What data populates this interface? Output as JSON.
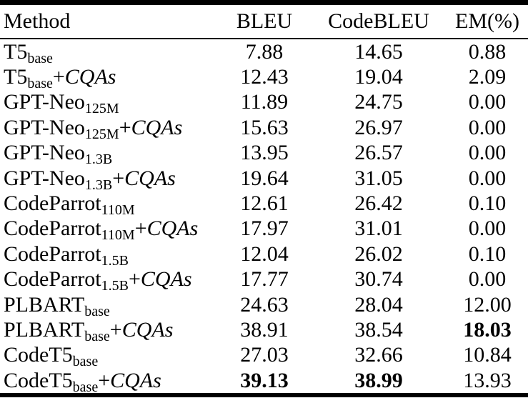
{
  "table": {
    "columns": [
      "Method",
      "BLEU",
      "CodeBLEU",
      "EM(%)"
    ],
    "cqas_plus": "+",
    "cqas_label": "CQAs",
    "text_color": "#000000",
    "background_color": "#ffffff",
    "rows": [
      {
        "name": "T5",
        "sub": "base",
        "cqas": false,
        "bleu": "7.88",
        "codebleu": "14.65",
        "em": "0.88",
        "bold": []
      },
      {
        "name": "T5",
        "sub": "base",
        "cqas": true,
        "bleu": "12.43",
        "codebleu": "19.04",
        "em": "2.09",
        "bold": []
      },
      {
        "name": "GPT-Neo",
        "sub": "125M",
        "cqas": false,
        "bleu": "11.89",
        "codebleu": "24.75",
        "em": "0.00",
        "bold": []
      },
      {
        "name": "GPT-Neo",
        "sub": "125M",
        "cqas": true,
        "bleu": "15.63",
        "codebleu": "26.97",
        "em": "0.00",
        "bold": []
      },
      {
        "name": "GPT-Neo",
        "sub": "1.3B",
        "cqas": false,
        "bleu": "13.95",
        "codebleu": "26.57",
        "em": "0.00",
        "bold": []
      },
      {
        "name": "GPT-Neo",
        "sub": "1.3B",
        "cqas": true,
        "bleu": "19.64",
        "codebleu": "31.05",
        "em": "0.00",
        "bold": []
      },
      {
        "name": "CodeParrot",
        "sub": "110M",
        "cqas": false,
        "bleu": "12.61",
        "codebleu": "26.42",
        "em": "0.10",
        "bold": []
      },
      {
        "name": "CodeParrot",
        "sub": "110M",
        "cqas": true,
        "bleu": "17.97",
        "codebleu": "31.01",
        "em": "0.00",
        "bold": []
      },
      {
        "name": "CodeParrot",
        "sub": "1.5B",
        "cqas": false,
        "bleu": "12.04",
        "codebleu": "26.02",
        "em": "0.10",
        "bold": []
      },
      {
        "name": "CodeParrot",
        "sub": "1.5B",
        "cqas": true,
        "bleu": "17.77",
        "codebleu": "30.74",
        "em": "0.00",
        "bold": []
      },
      {
        "name": "PLBART",
        "sub": "base",
        "cqas": false,
        "bleu": "24.63",
        "codebleu": "28.04",
        "em": "12.00",
        "bold": []
      },
      {
        "name": "PLBART",
        "sub": "base",
        "cqas": true,
        "bleu": "38.91",
        "codebleu": "38.54",
        "em": "18.03",
        "bold": [
          "em"
        ]
      },
      {
        "name": "CodeT5",
        "sub": "base",
        "cqas": false,
        "bleu": "27.03",
        "codebleu": "32.66",
        "em": "10.84",
        "bold": []
      },
      {
        "name": "CodeT5",
        "sub": "base",
        "cqas": true,
        "bleu": "39.13",
        "codebleu": "38.99",
        "em": "13.93",
        "bold": [
          "bleu",
          "codebleu"
        ]
      }
    ]
  }
}
